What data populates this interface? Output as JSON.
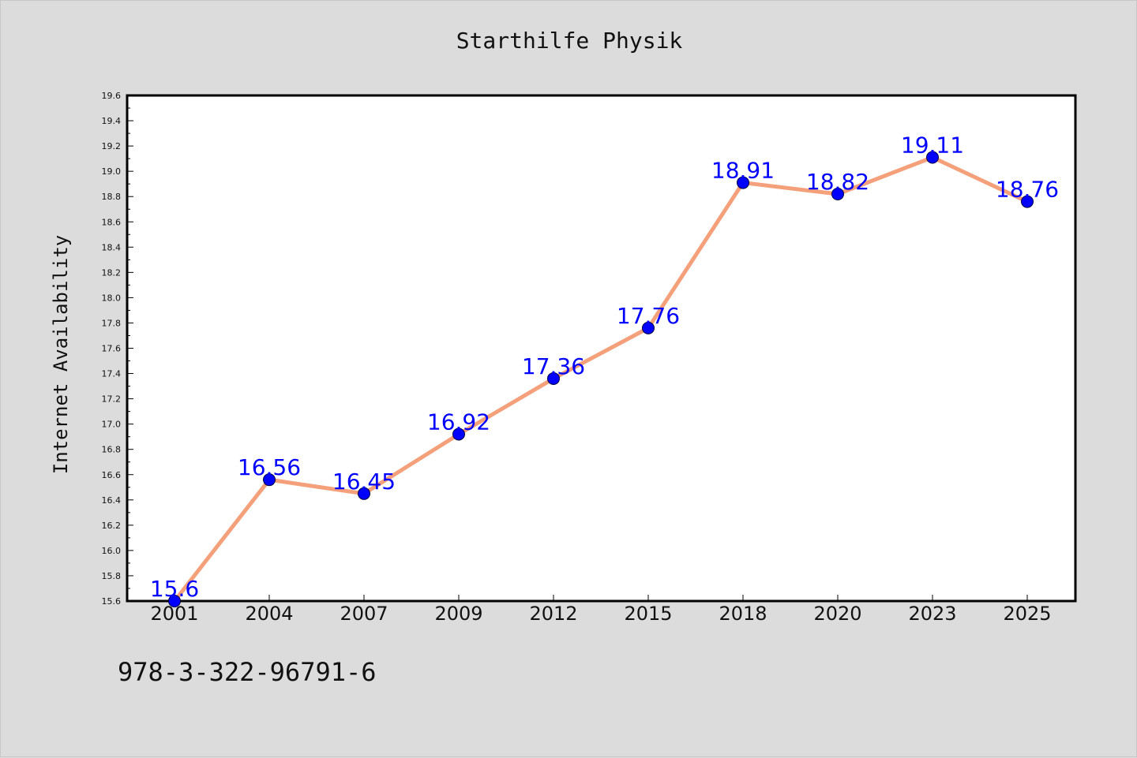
{
  "chart_data": {
    "type": "line",
    "title": "Starthilfe Physik",
    "xlabel": "",
    "ylabel": "Internet Availability",
    "categories": [
      "2001",
      "2004",
      "2007",
      "2009",
      "2012",
      "2015",
      "2018",
      "2020",
      "2023",
      "2025"
    ],
    "series": [
      {
        "values": [
          15.6,
          16.56,
          16.45,
          16.92,
          17.36,
          17.76,
          18.91,
          18.82,
          19.11,
          18.76
        ],
        "labels": [
          "15.6",
          "16.56",
          "16.45",
          "16.92",
          "17.36",
          "17.76",
          "18.91",
          "18.82",
          "19.11",
          "18.76"
        ]
      }
    ],
    "ylim": [
      15.6,
      19.6
    ],
    "yticks": [
      "15.6",
      "15.8",
      "16.0",
      "16.2",
      "16.4",
      "16.6",
      "16.8",
      "17.0",
      "17.2",
      "17.4",
      "17.6",
      "17.8",
      "18.0",
      "18.2",
      "18.4",
      "18.6",
      "18.8",
      "19.0",
      "19.2",
      "19.4",
      "19.6"
    ],
    "grid": false,
    "legend": "none",
    "colors": {
      "line": "#f4a07a",
      "marker": "#0000ff",
      "data_label": "#0000ff",
      "plot_background": "#ffffff",
      "figure_background": "#dcdcdc"
    }
  },
  "footer": {
    "isbn": "978-3-322-96791-6"
  }
}
